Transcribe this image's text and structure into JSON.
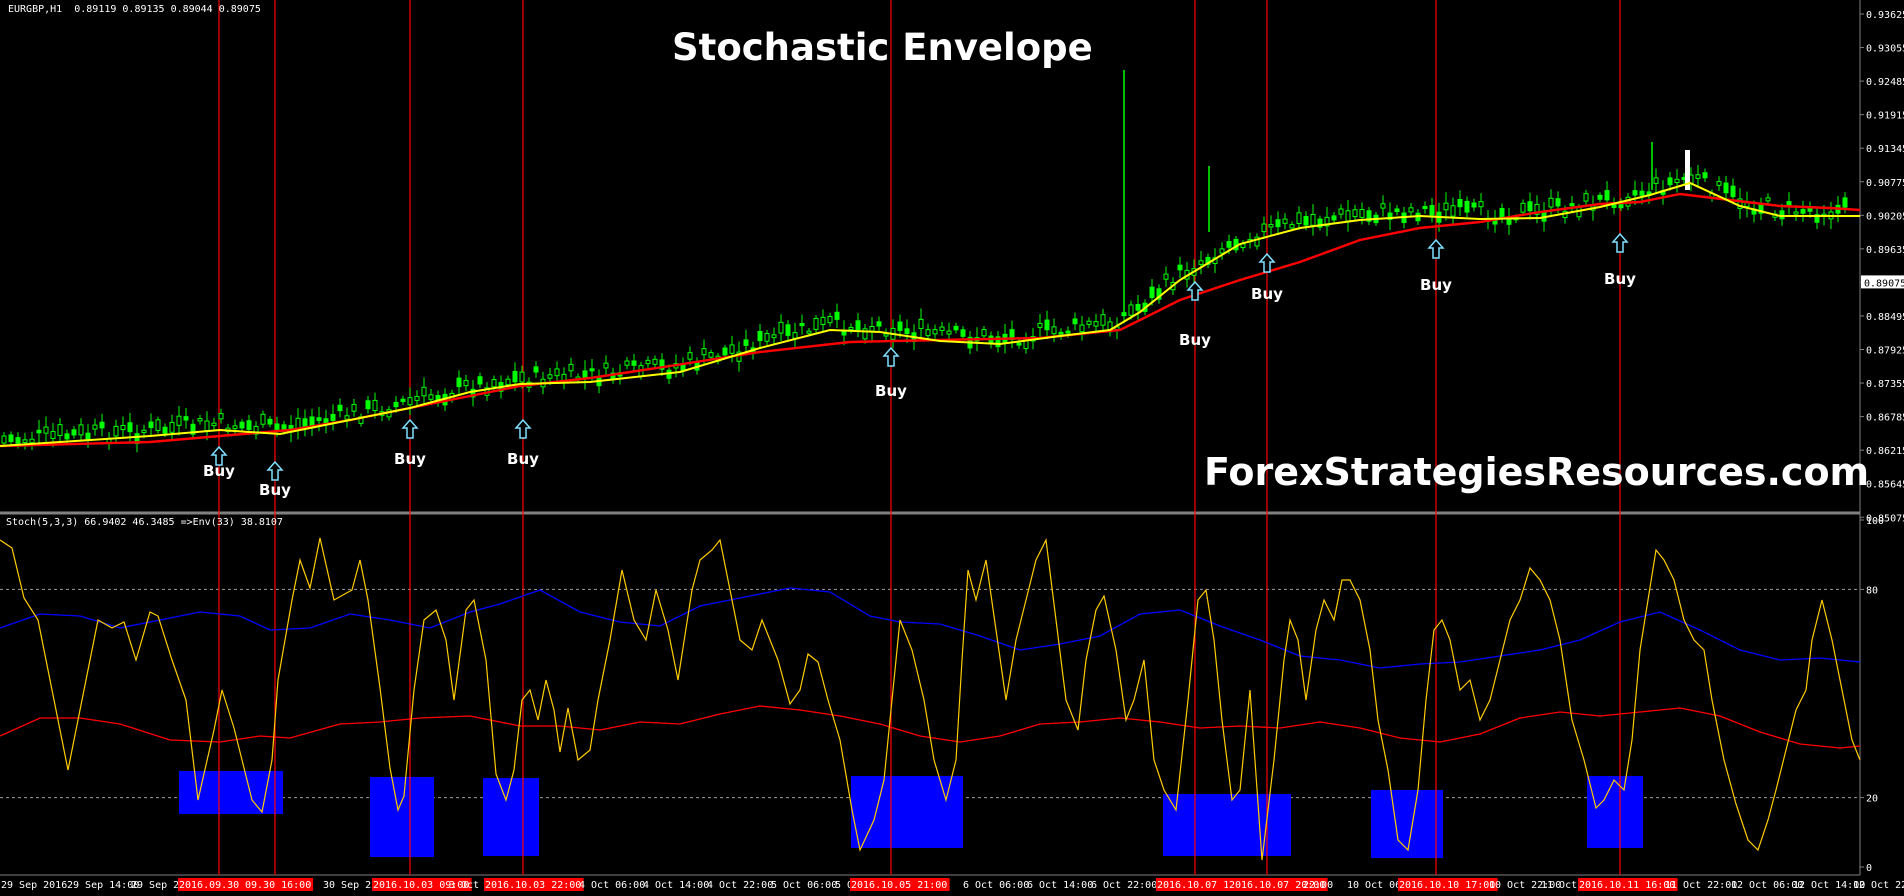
{
  "chart_header": {
    "symbol": "EURGBP,H1",
    "ohlc": "0.89119 0.89135 0.89044 0.89075"
  },
  "title": "Stochastic Envelope",
  "watermark": "ForexStrategiesResources.com",
  "indicator_header": "Stoch(5,3,3) 66.9402 46.3485 =>Env(33) 38.8107",
  "colors": {
    "background": "#000000",
    "candle": "#00ff00",
    "ma_fast": "#ffff00",
    "ma_slow": "#ff0000",
    "stoch": "#ffcc00",
    "env_upper": "#0000ff",
    "env_lower": "#ff0000",
    "signal_line": "#ff0000",
    "zone_box": "#0000ff",
    "arrow": "#7fe0ff",
    "buy_label": "#ffffff"
  },
  "price_axis": [
    "0.93625",
    "0.93055",
    "0.92485",
    "0.91915",
    "0.91345",
    "0.90775",
    "0.90205",
    "0.89635",
    "0.89075",
    "0.88495",
    "0.87925",
    "0.87355",
    "0.86785",
    "0.86215",
    "0.85645",
    "0.85075"
  ],
  "current_price": "0.89075",
  "stoch_axis": [
    "100",
    "80",
    "20",
    "0"
  ],
  "time_axis": [
    {
      "label": "29 Sep 2016",
      "highlight": false
    },
    {
      "label": "29 Sep 14:00",
      "highlight": false
    },
    {
      "label": "29 Sep 22:00",
      "highlight": false
    },
    {
      "label": "2016.09.30 09:00",
      "highlight": true
    },
    {
      "label": "09.30 16:00",
      "highlight": true
    },
    {
      "label": "30 Sep 22:00",
      "highlight": false
    },
    {
      "label": "2016.10.03 09:00",
      "highlight": true
    },
    {
      "label": "3 Oct 14:",
      "highlight": false
    },
    {
      "label": "2016.10.03 22:00",
      "highlight": true
    },
    {
      "label": "4 Oct 06:00",
      "highlight": false
    },
    {
      "label": "4 Oct 14:00",
      "highlight": false
    },
    {
      "label": "4 Oct 22:00",
      "highlight": false
    },
    {
      "label": "5 Oct 06:00",
      "highlight": false
    },
    {
      "label": "5 O",
      "highlight": false
    },
    {
      "label": "2016.10.05 21:00",
      "highlight": true
    },
    {
      "label": "6 Oct 06:00",
      "highlight": false
    },
    {
      "label": "6 Oct 14:00",
      "highlight": false
    },
    {
      "label": "6 Oct 22:00",
      "highlight": false
    },
    {
      "label": "2016.10.07 11:0",
      "highlight": true
    },
    {
      "label": "2016.10.07 20:00",
      "highlight": true
    },
    {
      "label": "22:00",
      "highlight": false
    },
    {
      "label": "10 Oct 06:00",
      "highlight": false
    },
    {
      "label": "2016.10.10 17:00",
      "highlight": true
    },
    {
      "label": "10 Oct 22:00",
      "highlight": false
    },
    {
      "label": "11 Oct 06",
      "highlight": false
    },
    {
      "label": "2016.10.11 16:00",
      "highlight": true
    },
    {
      "label": "11 Oct 22:00",
      "highlight": false
    },
    {
      "label": "12 Oct 06:00",
      "highlight": false
    },
    {
      "label": "12 Oct 14:00",
      "highlight": false
    },
    {
      "label": "12 Oct 22:0",
      "highlight": false
    }
  ],
  "signals": [
    {
      "label": "Buy"
    },
    {
      "label": "Buy"
    },
    {
      "label": "Buy"
    },
    {
      "label": "Buy"
    },
    {
      "label": "Buy"
    },
    {
      "label": "Buy"
    },
    {
      "label": "Buy"
    },
    {
      "label": "Buy"
    },
    {
      "label": "Buy"
    }
  ]
}
